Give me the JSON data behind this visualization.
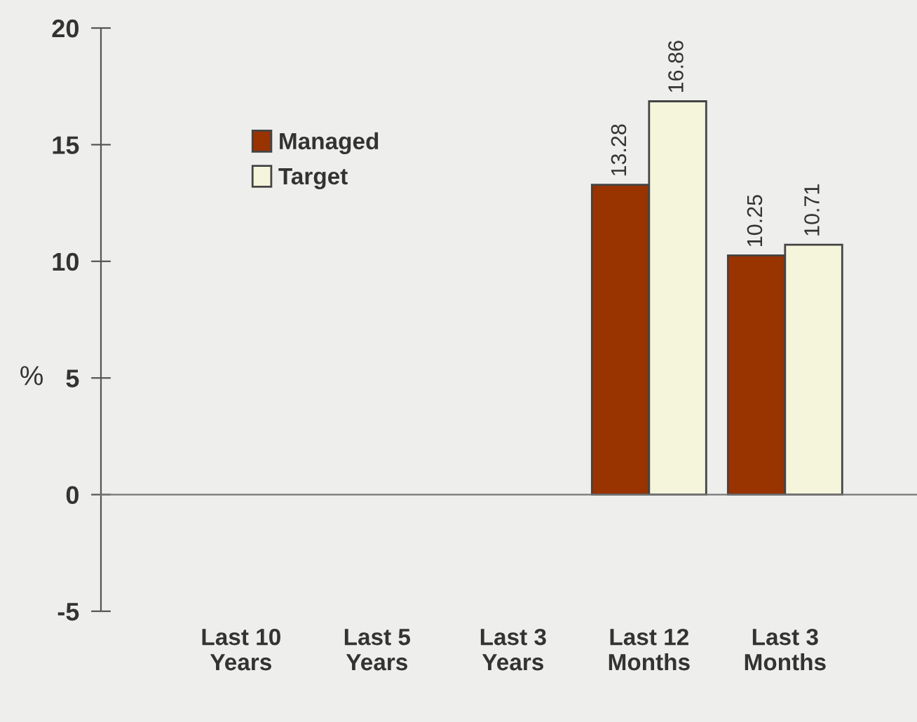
{
  "chart_data": {
    "type": "bar",
    "ylabel": "%",
    "categories": [
      "Last 10\nYears",
      "Last 5\nYears",
      "Last 3\nYears",
      "Last 12\nMonths",
      "Last 3\nMonths"
    ],
    "series": [
      {
        "name": "Managed",
        "color": "#993300",
        "values": [
          null,
          null,
          null,
          13.28,
          10.25
        ]
      },
      {
        "name": "Target",
        "color": "#f5f5dc",
        "values": [
          null,
          null,
          null,
          16.86,
          10.71
        ]
      }
    ],
    "ylim": [
      -5,
      20
    ],
    "yticks": [
      -5,
      0,
      5,
      10,
      15,
      20
    ],
    "data_labels": true,
    "legend": "top left"
  }
}
